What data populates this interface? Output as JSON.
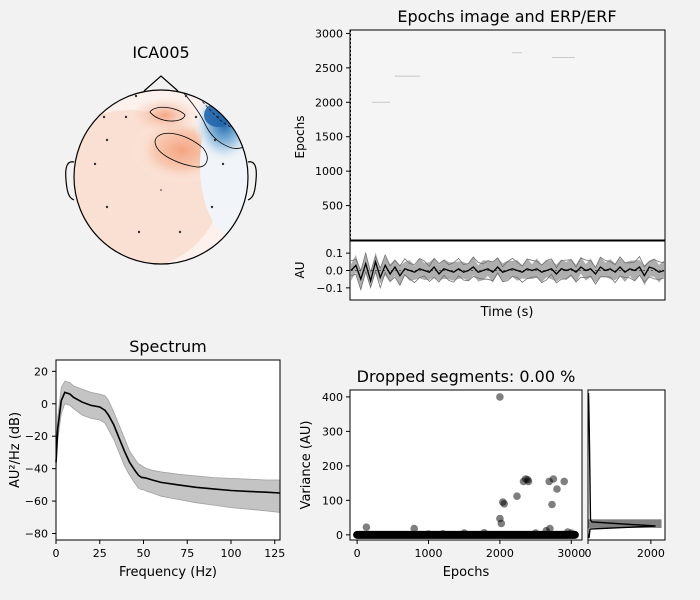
{
  "figure": {
    "background": "#f2f2f2",
    "panel_face": "#ffffff",
    "image_face": "#f5f5f5"
  },
  "chart_data": [
    {
      "type": "topomap",
      "title": "ICA005",
      "colors": {
        "positive": "#f4a582",
        "negative": "#2166ac",
        "neutral": "#f7f7f7",
        "head_outline": "#000000"
      },
      "sensor_count": 15,
      "note_labels": []
    },
    {
      "type": "heatmap",
      "title": "Epochs image and ERP/ERF",
      "xlabel": "",
      "ylabel": "Epochs",
      "yticks": [
        500,
        1000,
        1500,
        2000,
        2500,
        3000
      ],
      "ylim": [
        0,
        3050
      ],
      "faint_rows": [
        2000,
        2380,
        2720,
        2650
      ]
    },
    {
      "type": "line",
      "title": "",
      "xlabel": "Time (s)",
      "ylabel": "AU",
      "yticks": [
        -0.1,
        0.0,
        0.1
      ],
      "ytick_labels": [
        "−0.1",
        "0.0",
        "0.1"
      ],
      "ylim": [
        -0.17,
        0.17
      ],
      "series": [
        {
          "values": [
            0.0,
            0.03,
            -0.05,
            0.04,
            -0.06,
            0.05,
            -0.04,
            0.03,
            -0.02,
            0.02,
            -0.03,
            0.01,
            0.0,
            -0.01,
            0.01,
            0.0,
            -0.01,
            0.02,
            -0.02,
            0.01,
            0.0,
            -0.01,
            0.01,
            -0.01,
            0.0,
            0.02,
            -0.01,
            0.0,
            0.01,
            -0.01,
            0.02,
            -0.01,
            0.0,
            0.01,
            0.0,
            -0.01,
            0.01,
            0.0,
            0.01,
            -0.01,
            0.0,
            0.01,
            -0.02,
            0.01,
            0.0,
            0.01,
            -0.01,
            0.02,
            0.0,
            0.01,
            -0.02,
            0.02,
            0.0,
            0.01,
            -0.01,
            0.02,
            -0.01,
            0.01,
            0.0,
            0.02,
            -0.03,
            0.02,
            0.01,
            -0.01,
            0.0
          ]
        }
      ]
    },
    {
      "type": "line",
      "title": "Spectrum",
      "xlabel": "Frequency (Hz)",
      "ylabel": "AU²/Hz (dB)",
      "xlim": [
        0,
        128
      ],
      "ylim": [
        -84,
        27
      ],
      "xticks": [
        0,
        25,
        50,
        75,
        100,
        125
      ],
      "yticks": [
        -80,
        -60,
        -40,
        -20,
        0,
        20
      ],
      "ytick_labels": [
        "−80",
        "−60",
        "−40",
        "−20",
        "0",
        "20"
      ],
      "series": [
        {
          "x": [
            0,
            1,
            3,
            5,
            8,
            10,
            15,
            20,
            25,
            28,
            30,
            33,
            36,
            39,
            42,
            45,
            47,
            49,
            50,
            52,
            55,
            60,
            70,
            80,
            90,
            100,
            110,
            120,
            128
          ],
          "mean": [
            -36,
            -15,
            2,
            7,
            6,
            4,
            1,
            -1,
            -2,
            -4,
            -7,
            -13,
            -21,
            -29,
            -36,
            -41,
            -44,
            -45.5,
            -45.5,
            -46,
            -47,
            -48.5,
            -50,
            -51.5,
            -52.5,
            -53.5,
            -54,
            -54.5,
            -55
          ],
          "upper": [
            -30,
            -8,
            10,
            14,
            13,
            11,
            9,
            7,
            6,
            5,
            2,
            -5,
            -13,
            -21,
            -29,
            -34,
            -37,
            -38,
            -39,
            -40,
            -41,
            -42,
            -43.5,
            -44.5,
            -45.5,
            -46,
            -46.5,
            -47,
            -47
          ],
          "lower": [
            -42,
            -22,
            -6,
            0,
            -1,
            -3,
            -7,
            -9,
            -10,
            -12,
            -16,
            -22,
            -30,
            -38,
            -44,
            -49,
            -52,
            -53,
            -53,
            -54,
            -55,
            -57,
            -59,
            -61,
            -62.5,
            -64,
            -65,
            -66,
            -67
          ]
        }
      ]
    },
    {
      "type": "scatter",
      "title": "Dropped segments: 0.00 %",
      "xlabel": "Epochs",
      "ylabel": "Variance (AU)",
      "xlim": [
        -100,
        3150
      ],
      "ylim": [
        -15,
        420
      ],
      "xticks": [
        0,
        1000,
        2000,
        3000
      ],
      "yticks": [
        0,
        100,
        200,
        300,
        400
      ],
      "series": [
        {
          "name": "",
          "points": [
            [
              130,
              22
            ],
            [
              800,
              18
            ],
            [
              1000,
              2
            ],
            [
              1200,
              3
            ],
            [
              1500,
              5
            ],
            [
              1780,
              6
            ],
            [
              2000,
              400
            ],
            [
              2000,
              47
            ],
            [
              2020,
              33
            ],
            [
              2040,
              95
            ],
            [
              2060,
              90
            ],
            [
              2240,
              112
            ],
            [
              2330,
              155
            ],
            [
              2360,
              162
            ],
            [
              2390,
              160
            ],
            [
              2400,
              155
            ],
            [
              2500,
              5
            ],
            [
              2650,
              12
            ],
            [
              2690,
              155
            ],
            [
              2700,
              18
            ],
            [
              2730,
              88
            ],
            [
              2750,
              162
            ],
            [
              2800,
              133
            ],
            [
              2900,
              155
            ],
            [
              2950,
              8
            ],
            [
              3000,
              5
            ]
          ]
        }
      ]
    },
    {
      "type": "histogram",
      "title": "",
      "xlabel": "",
      "ylabel": "",
      "xlim": [
        0,
        2450
      ],
      "xticks": [
        0,
        2000
      ],
      "bar_var_range": [
        20,
        45
      ],
      "bar_count_max": 2340
    }
  ]
}
